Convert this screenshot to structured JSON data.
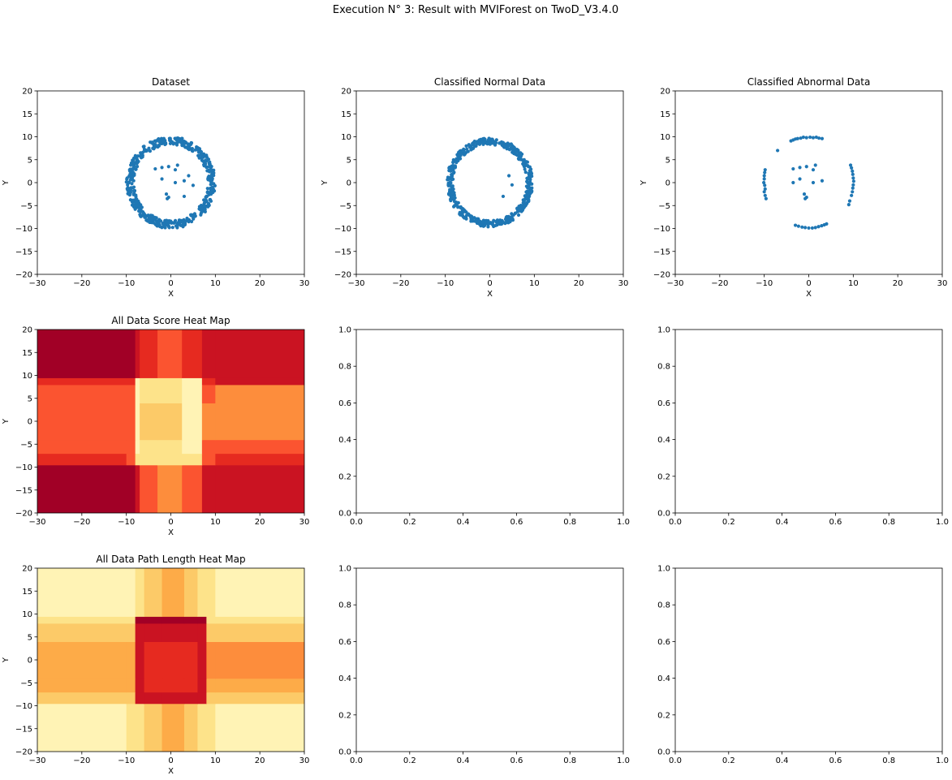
{
  "figure_title": "Execution N° 3: Result with MVIForest on TwoD_V3.4.0",
  "colors": {
    "points": "#1f77b4",
    "score_levels": [
      "#fcca68",
      "#fde38a",
      "#fff3b5",
      "#fd8d3c",
      "#fb5430",
      "#e62a20",
      "#ca1322",
      "#a10026"
    ],
    "path_levels": [
      "#e62a20",
      "#ca1322",
      "#a10026",
      "#fd8d3c",
      "#fdab48",
      "#fcca68",
      "#fde38a",
      "#fff3b5"
    ]
  },
  "chart_data": [
    {
      "id": "dataset",
      "type": "scatter",
      "title": "Dataset",
      "xlabel": "X",
      "ylabel": "Y",
      "xlim": [
        -30,
        30
      ],
      "ylim": [
        -20,
        20
      ],
      "xticks": [
        -30,
        -20,
        -10,
        0,
        10,
        20,
        30
      ],
      "yticks": [
        -20,
        -15,
        -10,
        -5,
        0,
        5,
        10,
        15,
        20
      ],
      "ring": {
        "center": [
          0,
          0
        ],
        "radius_min": 8.3,
        "radius_max": 10.0,
        "count": 500
      },
      "points": [
        [
          -3.5,
          3
        ],
        [
          -2,
          3.3
        ],
        [
          -0.5,
          3.5
        ],
        [
          1.5,
          3.8
        ],
        [
          1,
          2.8
        ],
        [
          4,
          1.5
        ],
        [
          -2,
          0.8
        ],
        [
          1,
          0
        ],
        [
          3,
          0.4
        ],
        [
          5,
          -0.6
        ],
        [
          -1,
          -2.5
        ],
        [
          -0.5,
          -3.2
        ],
        [
          -0.8,
          -3.5
        ],
        [
          3,
          -3
        ]
      ]
    },
    {
      "id": "normal",
      "type": "scatter",
      "title": "Classified Normal Data",
      "xlabel": "X",
      "ylabel": "Y",
      "xlim": [
        -30,
        30
      ],
      "ylim": [
        -20,
        20
      ],
      "xticks": [
        -30,
        -20,
        -10,
        0,
        10,
        20,
        30
      ],
      "yticks": [
        -20,
        -15,
        -10,
        -5,
        0,
        5,
        10,
        15,
        20
      ],
      "ring": {
        "center": [
          0,
          0
        ],
        "radius_min": 8.3,
        "radius_max": 9.7,
        "count": 460
      },
      "points": [
        [
          4.3,
          1.5
        ],
        [
          5,
          -0.5
        ],
        [
          3,
          -3
        ]
      ]
    },
    {
      "id": "abnormal",
      "type": "scatter",
      "title": "Classified Abnormal Data",
      "xlabel": "X",
      "ylabel": "Y",
      "xlim": [
        -30,
        30
      ],
      "ylim": [
        -20,
        20
      ],
      "xticks": [
        -30,
        -20,
        -10,
        0,
        10,
        20,
        30
      ],
      "yticks": [
        -20,
        -15,
        -10,
        -5,
        0,
        5,
        10,
        15,
        20
      ],
      "points": [
        [
          -4,
          9.1
        ],
        [
          -3.5,
          9.3
        ],
        [
          -3,
          9.5
        ],
        [
          -2.5,
          9.6
        ],
        [
          -1.8,
          9.7
        ],
        [
          -1.2,
          9.9
        ],
        [
          -0.5,
          9.8
        ],
        [
          0.3,
          9.9
        ],
        [
          1,
          9.8
        ],
        [
          1.7,
          9.9
        ],
        [
          2.3,
          9.7
        ],
        [
          3,
          9.6
        ],
        [
          -7,
          7
        ],
        [
          -9.8,
          2.8
        ],
        [
          -9.9,
          2.2
        ],
        [
          -10,
          1.5
        ],
        [
          -10,
          0.8
        ],
        [
          -10.1,
          0
        ],
        [
          -9.9,
          -0.6
        ],
        [
          -9.8,
          -1.4
        ],
        [
          -10,
          -2
        ],
        [
          -9.8,
          -2.8
        ],
        [
          -9.6,
          -3.5
        ],
        [
          9.4,
          3.8
        ],
        [
          9.6,
          3.2
        ],
        [
          9.8,
          2.5
        ],
        [
          9.9,
          1.8
        ],
        [
          10,
          1
        ],
        [
          10.1,
          0.3
        ],
        [
          10,
          -0.5
        ],
        [
          9.9,
          -1.2
        ],
        [
          9.8,
          -2
        ],
        [
          9.6,
          -2.8
        ],
        [
          9.2,
          -4
        ],
        [
          9,
          -4.8
        ],
        [
          -3,
          -9.3
        ],
        [
          -2.3,
          -9.5
        ],
        [
          -1.5,
          -9.7
        ],
        [
          -0.8,
          -9.8
        ],
        [
          0,
          -9.9
        ],
        [
          0.8,
          -9.9
        ],
        [
          1.5,
          -9.8
        ],
        [
          2.2,
          -9.6
        ],
        [
          2.9,
          -9.4
        ],
        [
          3.5,
          -9.2
        ],
        [
          4,
          -9
        ],
        [
          -3.5,
          3
        ],
        [
          -2,
          3.3
        ],
        [
          -0.5,
          3.5
        ],
        [
          1.5,
          3.8
        ],
        [
          1,
          2.8
        ],
        [
          -2,
          0.8
        ],
        [
          1,
          0
        ],
        [
          3,
          0.4
        ],
        [
          -1,
          -2.5
        ],
        [
          -0.5,
          -3.2
        ],
        [
          -0.8,
          -3.5
        ],
        [
          -3.5,
          0
        ]
      ]
    },
    {
      "id": "score",
      "type": "heatmap",
      "title": "All Data Score Heat Map",
      "xlabel": "X",
      "ylabel": "Y",
      "xlim": [
        -30,
        30
      ],
      "ylim": [
        -20,
        20
      ],
      "xticks": [
        -30,
        -20,
        -10,
        0,
        10,
        20,
        30
      ],
      "yticks": [
        -20,
        -15,
        -10,
        -5,
        0,
        5,
        10,
        15,
        20
      ],
      "x_edges": [
        -30,
        -10,
        -8,
        -7,
        -3,
        2.5,
        7,
        10,
        30
      ],
      "y_edges": [
        -20,
        -9.5,
        -7,
        -4,
        4,
        8,
        9.5,
        20
      ],
      "grid": [
        [
          7,
          7,
          6,
          4,
          3,
          4,
          6,
          6
        ],
        [
          5,
          4,
          1,
          1,
          1,
          1,
          4,
          5
        ],
        [
          4,
          4,
          2,
          1,
          1,
          2,
          4,
          4
        ],
        [
          4,
          4,
          2,
          0,
          0,
          2,
          3,
          3
        ],
        [
          4,
          4,
          2,
          1,
          1,
          2,
          4,
          3
        ],
        [
          5,
          5,
          2,
          1,
          1,
          2,
          5,
          6
        ],
        [
          7,
          7,
          6,
          5,
          4,
          5,
          6,
          6
        ]
      ]
    },
    {
      "id": "empty1",
      "type": "empty",
      "title": "",
      "xlim": [
        0,
        1
      ],
      "ylim": [
        0,
        1
      ],
      "xticks": [
        0.0,
        0.2,
        0.4,
        0.6,
        0.8,
        1.0
      ],
      "yticks": [
        0.0,
        0.2,
        0.4,
        0.6,
        0.8,
        1.0
      ],
      "xlabel": "",
      "ylabel": ""
    },
    {
      "id": "empty2",
      "type": "empty",
      "title": "",
      "xlim": [
        0,
        1
      ],
      "ylim": [
        0,
        1
      ],
      "xticks": [
        0.0,
        0.2,
        0.4,
        0.6,
        0.8,
        1.0
      ],
      "yticks": [
        0.0,
        0.2,
        0.4,
        0.6,
        0.8,
        1.0
      ],
      "xlabel": "",
      "ylabel": ""
    },
    {
      "id": "path",
      "type": "heatmap",
      "title": "All Data Path Length Heat Map",
      "xlabel": "X",
      "ylabel": "Y",
      "xlim": [
        -30,
        30
      ],
      "ylim": [
        -20,
        20
      ],
      "xticks": [
        -30,
        -20,
        -10,
        0,
        10,
        20,
        30
      ],
      "yticks": [
        -20,
        -15,
        -10,
        -5,
        0,
        5,
        10,
        15,
        20
      ],
      "x_edges": [
        -30,
        -10,
        -8,
        -6,
        -2,
        3,
        6,
        8,
        10,
        30
      ],
      "y_edges": [
        -20,
        -9.5,
        -7,
        -4,
        4,
        8,
        9.5,
        20
      ],
      "grid": [
        [
          7,
          6,
          6,
          5,
          4,
          5,
          6,
          6,
          7
        ],
        [
          5,
          5,
          1,
          1,
          1,
          1,
          1,
          5,
          5
        ],
        [
          4,
          4,
          1,
          0,
          0,
          0,
          1,
          4,
          4
        ],
        [
          4,
          4,
          1,
          0,
          0,
          0,
          1,
          3,
          3
        ],
        [
          5,
          5,
          1,
          1,
          1,
          1,
          1,
          5,
          5
        ],
        [
          6,
          6,
          2,
          2,
          2,
          2,
          2,
          6,
          6
        ],
        [
          7,
          7,
          6,
          5,
          4,
          5,
          6,
          6,
          7
        ]
      ]
    },
    {
      "id": "empty3",
      "type": "empty",
      "title": "",
      "xlim": [
        0,
        1
      ],
      "ylim": [
        0,
        1
      ],
      "xticks": [
        0.0,
        0.2,
        0.4,
        0.6,
        0.8,
        1.0
      ],
      "yticks": [
        0.0,
        0.2,
        0.4,
        0.6,
        0.8,
        1.0
      ],
      "xlabel": "",
      "ylabel": ""
    },
    {
      "id": "empty4",
      "type": "empty",
      "title": "",
      "xlim": [
        0,
        1
      ],
      "ylim": [
        0,
        1
      ],
      "xticks": [
        0.0,
        0.2,
        0.4,
        0.6,
        0.8,
        1.0
      ],
      "yticks": [
        0.0,
        0.2,
        0.4,
        0.6,
        0.8,
        1.0
      ],
      "xlabel": "",
      "ylabel": ""
    }
  ]
}
